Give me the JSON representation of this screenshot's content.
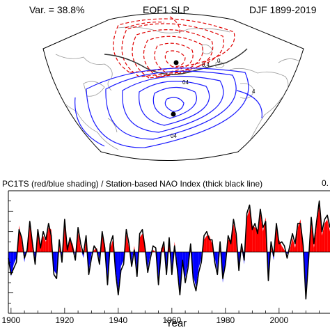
{
  "map_panel": {
    "variance_label": "Var. = 38.8%",
    "title": "EOF1 SLP",
    "period": "DJF 1899-2019",
    "contour_labels": [
      "0",
      "4",
      "0.4",
      "04",
      "04"
    ]
  },
  "chart_data": {
    "type": "area",
    "title": "PC1TS (red/blue shading) / Station-based NAO Index (thick black line)",
    "corner_label": "0.",
    "xlabel": "Year",
    "ylabel": "",
    "xlim": [
      1899,
      2019
    ],
    "ylim": [
      -3,
      3
    ],
    "x_ticks": [
      1900,
      1920,
      1940,
      1960,
      1980,
      2000
    ],
    "x": [
      1899,
      1900,
      1901,
      1902,
      1903,
      1904,
      1905,
      1906,
      1907,
      1908,
      1909,
      1910,
      1911,
      1912,
      1913,
      1914,
      1915,
      1916,
      1917,
      1918,
      1919,
      1920,
      1921,
      1922,
      1923,
      1924,
      1925,
      1926,
      1927,
      1928,
      1929,
      1930,
      1931,
      1932,
      1933,
      1934,
      1935,
      1936,
      1937,
      1938,
      1939,
      1940,
      1941,
      1942,
      1943,
      1944,
      1945,
      1946,
      1947,
      1948,
      1949,
      1950,
      1951,
      1952,
      1953,
      1954,
      1955,
      1956,
      1957,
      1958,
      1959,
      1960,
      1961,
      1962,
      1963,
      1964,
      1965,
      1966,
      1967,
      1968,
      1969,
      1970,
      1971,
      1972,
      1973,
      1974,
      1975,
      1976,
      1977,
      1978,
      1979,
      1980,
      1981,
      1982,
      1983,
      1984,
      1985,
      1986,
      1987,
      1988,
      1989,
      1990,
      1991,
      1992,
      1993,
      1994,
      1995,
      1996,
      1997,
      1998,
      1999,
      2000,
      2001,
      2002,
      2003,
      2004,
      2005,
      2006,
      2007,
      2008,
      2009,
      2010,
      2011,
      2012,
      2013,
      2014,
      2015,
      2016,
      2017,
      2018,
      2019
    ],
    "series": [
      {
        "name": "PC1TS",
        "values": [
          -0.2,
          -1.2,
          -0.6,
          -0.3,
          1.3,
          0.5,
          -0.5,
          0.3,
          1.3,
          0.6,
          -0.4,
          0.9,
          0.3,
          0.8,
          0.5,
          1.2,
          1.1,
          -0.9,
          -1.1,
          0.5,
          -0.3,
          1.4,
          0.3,
          0.6,
          0.4,
          -0.2,
          1.0,
          0.2,
          -0.3,
          0.6,
          -0.9,
          -0.1,
          0.1,
          0.2,
          -0.4,
          0.8,
          0.4,
          -1.4,
          0.2,
          0.6,
          -0.8,
          -1.9,
          -0.7,
          -0.4,
          0.9,
          0.2,
          -0.5,
          0.3,
          -1.0,
          0.7,
          0.9,
          0.4,
          -0.8,
          -0.1,
          0.1,
          0.0,
          -1.4,
          0.2,
          0.3,
          -0.9,
          0.5,
          -0.9,
          0.5,
          -0.6,
          -1.9,
          -0.6,
          -1.3,
          -0.6,
          0.2,
          -1.2,
          -1.7,
          -0.8,
          -0.3,
          0.6,
          0.8,
          0.8,
          0.4,
          -0.3,
          -0.9,
          0.3,
          -1.5,
          -0.4,
          0.6,
          0.6,
          1.4,
          0.7,
          -0.7,
          0.2,
          -0.6,
          1.7,
          2.1,
          1.3,
          1.2,
          1.1,
          1.9,
          1.0,
          1.7,
          -1.2,
          0.3,
          -0.4,
          1.2,
          0.6,
          0.3,
          0.1,
          -0.1,
          0.1,
          0.7,
          0.2,
          1.2,
          1.6,
          0.1,
          -2.1,
          -0.6,
          1.5,
          0.2,
          1.3,
          2.3,
          0.8,
          1.4,
          1.6,
          1.0
        ]
      },
      {
        "name": "Station-based NAO Index",
        "values": [
          -0.3,
          -1.1,
          -0.8,
          -0.5,
          1.1,
          0.7,
          -0.3,
          0.1,
          1.5,
          0.4,
          -0.6,
          1.1,
          0.2,
          1.0,
          0.6,
          1.4,
          0.8,
          -1.1,
          -1.3,
          0.6,
          -0.5,
          1.6,
          0.1,
          0.7,
          0.2,
          -0.4,
          1.2,
          0.4,
          -0.1,
          0.8,
          -1.1,
          -0.3,
          0.3,
          0.1,
          -0.6,
          1.0,
          0.2,
          -1.6,
          0.4,
          0.8,
          -1.0,
          -2.1,
          -0.9,
          -0.6,
          1.1,
          0.4,
          -0.7,
          0.1,
          -1.2,
          0.9,
          1.1,
          0.2,
          -1.0,
          -0.3,
          0.3,
          0.2,
          -1.6,
          0.0,
          0.5,
          -1.1,
          0.7,
          -1.1,
          0.3,
          -0.8,
          -2.1,
          -0.4,
          -1.5,
          -0.8,
          0.4,
          -1.4,
          -1.9,
          -1.0,
          -0.5,
          0.8,
          1.0,
          0.6,
          0.6,
          -0.5,
          -1.1,
          0.5,
          -1.3,
          -0.6,
          0.8,
          0.4,
          1.6,
          0.9,
          -0.9,
          0.4,
          -0.4,
          1.9,
          2.3,
          1.1,
          1.4,
          0.9,
          2.1,
          1.2,
          1.5,
          -1.4,
          0.5,
          -0.2,
          1.4,
          0.4,
          0.5,
          0.3,
          -0.3,
          0.3,
          0.9,
          0.4,
          1.4,
          1.4,
          0.3,
          -2.3,
          -0.4,
          1.7,
          0.4,
          1.5,
          2.5,
          1.0,
          1.6,
          1.8,
          1.2
        ]
      }
    ],
    "colors": {
      "positive": "#ff0000",
      "negative": "#0000ff",
      "line": "#000000"
    }
  }
}
